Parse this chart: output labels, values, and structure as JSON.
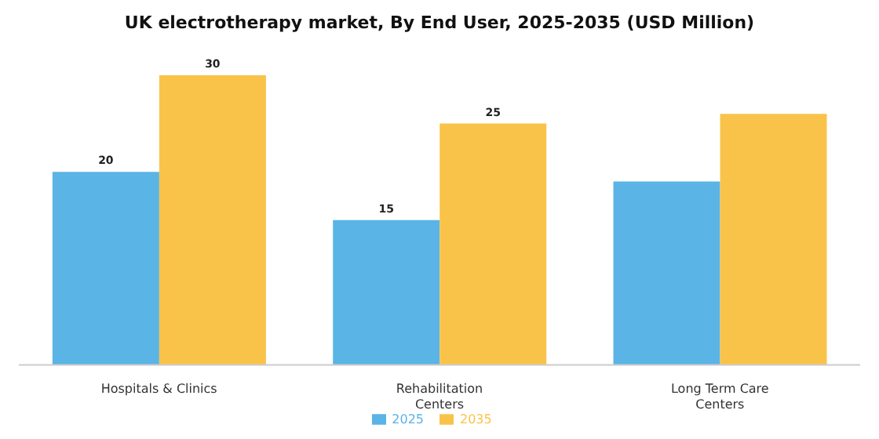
{
  "chart_data": {
    "type": "bar",
    "title": "UK electrotherapy market, By End User, 2025-2035 (USD Million)",
    "categories": [
      "Hospitals & Clinics",
      "Rehabilitation Centers",
      "Long Term Care Centers"
    ],
    "series": [
      {
        "name": "2025",
        "color": "#5ab4e5",
        "values": [
          20,
          15,
          19
        ],
        "value_labels": [
          "20",
          "15",
          null
        ]
      },
      {
        "name": "2035",
        "color": "#f9c34a",
        "values": [
          30,
          25,
          26
        ],
        "value_labels": [
          "30",
          "25",
          null
        ]
      }
    ],
    "ylim": [
      0,
      30
    ],
    "legend": "bottom",
    "grid": false
  }
}
